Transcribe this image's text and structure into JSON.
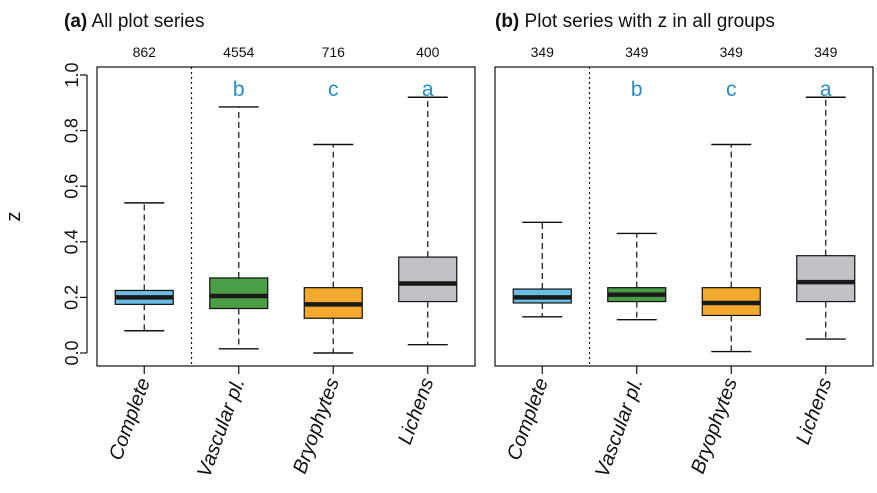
{
  "colors": {
    "Complete": "#6cbde3",
    "Vascular pl.": "#4a9e45",
    "Bryophytes": "#f3a92d",
    "Lichens": "#c0c2c6",
    "letter": "#2b8bbf",
    "median": "#1a1a1a"
  },
  "chart_data": [
    {
      "type": "box",
      "panel_tag": "(a)",
      "title": "All plot series",
      "ylabel": "z",
      "ylim": [
        0,
        1
      ],
      "yticks": [
        "0.0",
        "0.2",
        "0.4",
        "0.6",
        "0.8",
        "1.0"
      ],
      "categories": [
        "Complete",
        "Vascular pl.",
        "Bryophytes",
        "Lichens"
      ],
      "counts": [
        "862",
        "4554",
        "716",
        "400"
      ],
      "letters": [
        "",
        "b",
        "c",
        "a"
      ],
      "boxes": [
        {
          "min": 0.08,
          "q1": 0.175,
          "median": 0.2,
          "q3": 0.225,
          "max": 0.54
        },
        {
          "min": 0.015,
          "q1": 0.16,
          "median": 0.205,
          "q3": 0.27,
          "max": 0.885
        },
        {
          "min": 0.0,
          "q1": 0.125,
          "median": 0.175,
          "q3": 0.235,
          "max": 0.75
        },
        {
          "min": 0.03,
          "q1": 0.185,
          "median": 0.25,
          "q3": 0.345,
          "max": 0.92
        }
      ],
      "separator_after": "Complete"
    },
    {
      "type": "box",
      "panel_tag": "(b)",
      "title": "Plot series with z in all groups",
      "ylabel": "",
      "ylim": [
        0,
        1
      ],
      "yticks": [],
      "categories": [
        "Complete",
        "Vascular pl.",
        "Bryophytes",
        "Lichens"
      ],
      "counts": [
        "349",
        "349",
        "349",
        "349"
      ],
      "letters": [
        "",
        "b",
        "c",
        "a"
      ],
      "boxes": [
        {
          "min": 0.13,
          "q1": 0.18,
          "median": 0.2,
          "q3": 0.23,
          "max": 0.47
        },
        {
          "min": 0.12,
          "q1": 0.185,
          "median": 0.21,
          "q3": 0.235,
          "max": 0.43
        },
        {
          "min": 0.005,
          "q1": 0.135,
          "median": 0.18,
          "q3": 0.235,
          "max": 0.75
        },
        {
          "min": 0.05,
          "q1": 0.185,
          "median": 0.255,
          "q3": 0.35,
          "max": 0.92
        }
      ],
      "separator_after": "Complete"
    }
  ]
}
